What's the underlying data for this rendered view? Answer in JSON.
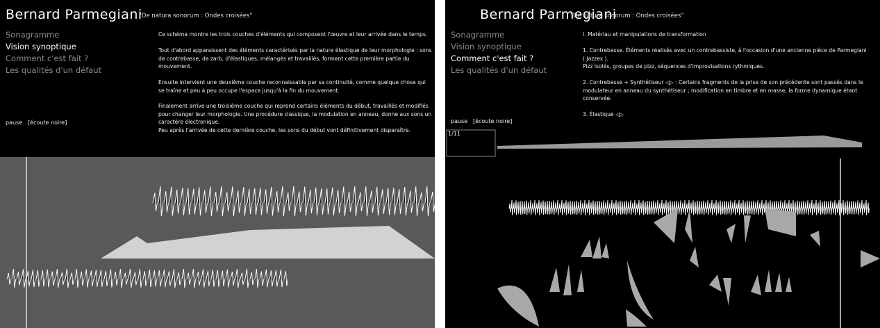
{
  "panels": [
    {
      "title": "Bernard Parmegiani",
      "subtitle": "\"De natura sonorum : Ondes croisées\"",
      "menu": [
        "Sonagramme",
        "Vision synoptique",
        "Comment c'est fait ?",
        "Les qualités d'un défaut"
      ],
      "active_menu": 1,
      "controls": [
        "pause",
        "[écoute noire]"
      ],
      "paragraphs": [
        "Ce schéma montre les trois couches d'éléments qui composent l'œuvre et leur arrivée dans le temps.",
        "Tout d'abord apparaissent des éléments caractérisés par la nature élastique de leur morphologie : sons de contrebasse, de zarb, d'élastiques, mélangés et travaillés, forment cette première partie du mouvement.",
        "Ensuite intervient une deuxième couche reconnaissable par sa continuité, comme quelque chose qui se traîne et peu à peu occupe l'espace jusqu'à la fin du mouvement.",
        "Finalement arrive une troisième couche qui reprend certains éléments du début, travaillés et modifiés pour changer leur morphologie. Une procédure classique, la modulation en anneau, donne aux sons un caractère électronique.",
        "Peu après l'arrivée de cette dernière couche, les sons du début vont définitivement disparaître."
      ]
    },
    {
      "title": "Bernard Parmegiani",
      "subtitle": "\"De natura sonorum : Ondes croisées\"",
      "menu": [
        "Sonagramme",
        "Vision synoptique",
        "Comment c'est fait ?",
        "Les qualités d'un défaut"
      ],
      "active_menu": 2,
      "controls": [
        "pause",
        "[écoute noire]"
      ],
      "paragraphs": [
        "I. Matériau et manipulations de transformation",
        "1. Contrebasse. Éléments réalisés avec un contrebassiste, à l'occasion d'une ancienne pièce de Parmegiani ( Jazzex ).",
        "Pizz isolés, groupes de pizz, séquences d'improvisations rythmiques.",
        "2. Contrebasse + Synthétiseur ◁▷ : Certains fragments de la prise de son précédente sont passés dans le modulateur en anneau du synthétiseur ; modification en timbre et en masse, la forme dynamique étant conservée.",
        "3. Élastique ◁▷"
      ],
      "thumbnail_label": "1/11"
    }
  ]
}
